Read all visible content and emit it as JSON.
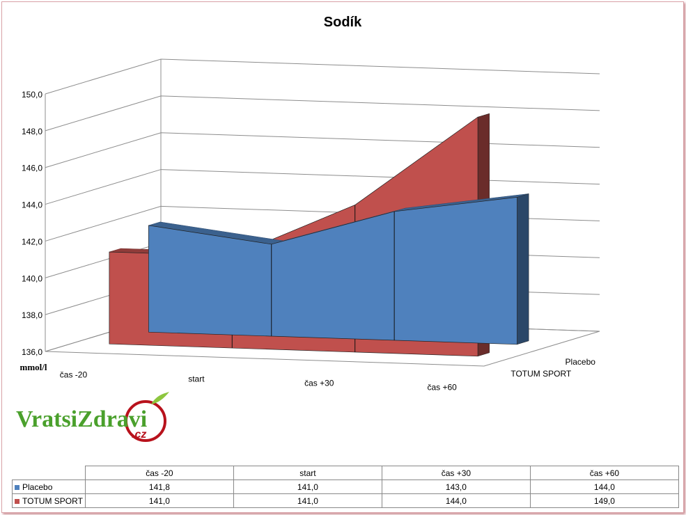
{
  "chart_data": {
    "type": "area",
    "title": "Sodík",
    "ylabel": "mmol/l",
    "categories": [
      "čas -20",
      "start",
      "čas +30",
      "čas +60"
    ],
    "series": [
      {
        "name": "Placebo",
        "values": [
          141.8,
          141.0,
          143.0,
          144.0
        ],
        "color": "#4f81bd"
      },
      {
        "name": "TOTUM SPORT",
        "values": [
          141.0,
          141.0,
          144.0,
          149.0
        ],
        "color": "#c0504d"
      }
    ],
    "ylim": [
      136,
      150
    ],
    "yticks": [
      "136,0",
      "138,0",
      "140,0",
      "142,0",
      "144,0",
      "146,0",
      "148,0",
      "150,0"
    ],
    "grid": true
  },
  "table": {
    "headers": [
      "čas -20",
      "start",
      "čas +30",
      "čas +60"
    ],
    "rows": [
      {
        "name": "Placebo",
        "values": [
          "141,8",
          "141,0",
          "143,0",
          "144,0"
        ],
        "color": "#4f81bd"
      },
      {
        "name": "TOTUM SPORT",
        "values": [
          "141,0",
          "141,0",
          "144,0",
          "149,0"
        ],
        "color": "#c0504d"
      }
    ]
  },
  "logo": {
    "main": "VratsiZdravi",
    "suffix": ".cz"
  }
}
